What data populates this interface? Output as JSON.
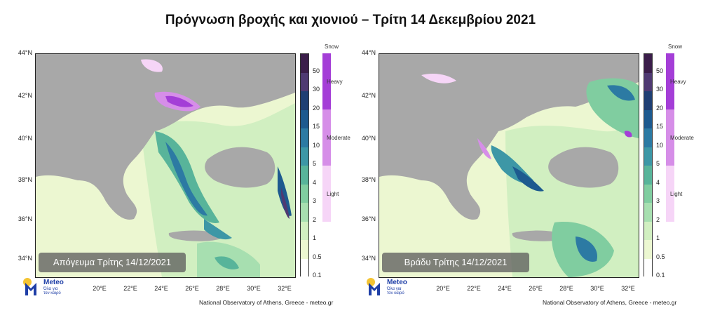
{
  "title": "Πρόγνωση βροχής και χιονιού – Τρίτη 14 Δεκεμβρίου 2021",
  "lat_labels": [
    "44°N",
    "42°N",
    "40°N",
    "38°N",
    "36°N",
    "34°N"
  ],
  "lon_labels": [
    "20°E",
    "22°E",
    "24°E",
    "26°E",
    "28°E",
    "30°E",
    "32°E"
  ],
  "rain_scale": {
    "labels": [
      "50",
      "30",
      "20",
      "15",
      "10",
      "5",
      "4",
      "3",
      "2",
      "1",
      "0.5",
      "0.1"
    ],
    "colors": [
      "#3b1e4a",
      "#4f3a72",
      "#1f3f73",
      "#1d5a8f",
      "#2c7aa3",
      "#3d97a6",
      "#58b49a",
      "#80cda0",
      "#a7dfb0",
      "#d1efc1",
      "#ecf7d1",
      "#ffffff"
    ]
  },
  "snow_scale": {
    "header": "Snow",
    "levels": [
      "Heavy",
      "Moderate",
      "Light"
    ],
    "colors": [
      "#a43ed7",
      "#d68ee8",
      "#f6d5f7"
    ]
  },
  "panels": [
    {
      "caption": "Απόγευμα Τρίτης 14/12/2021"
    },
    {
      "caption": "Βράδυ Τρίτης 14/12/2021"
    }
  ],
  "logo": {
    "name": "Meteo",
    "tagline_1": "Όλα για",
    "tagline_2": "τον καιρό"
  },
  "credit": "National Observatory of Athens, Greece - meteo.gr",
  "colors": {
    "land": "#a8a8a8",
    "sea_dry": "#b9b9b9",
    "logo_blue": "#1f3fa7",
    "logo_sun": "#f4c433"
  }
}
